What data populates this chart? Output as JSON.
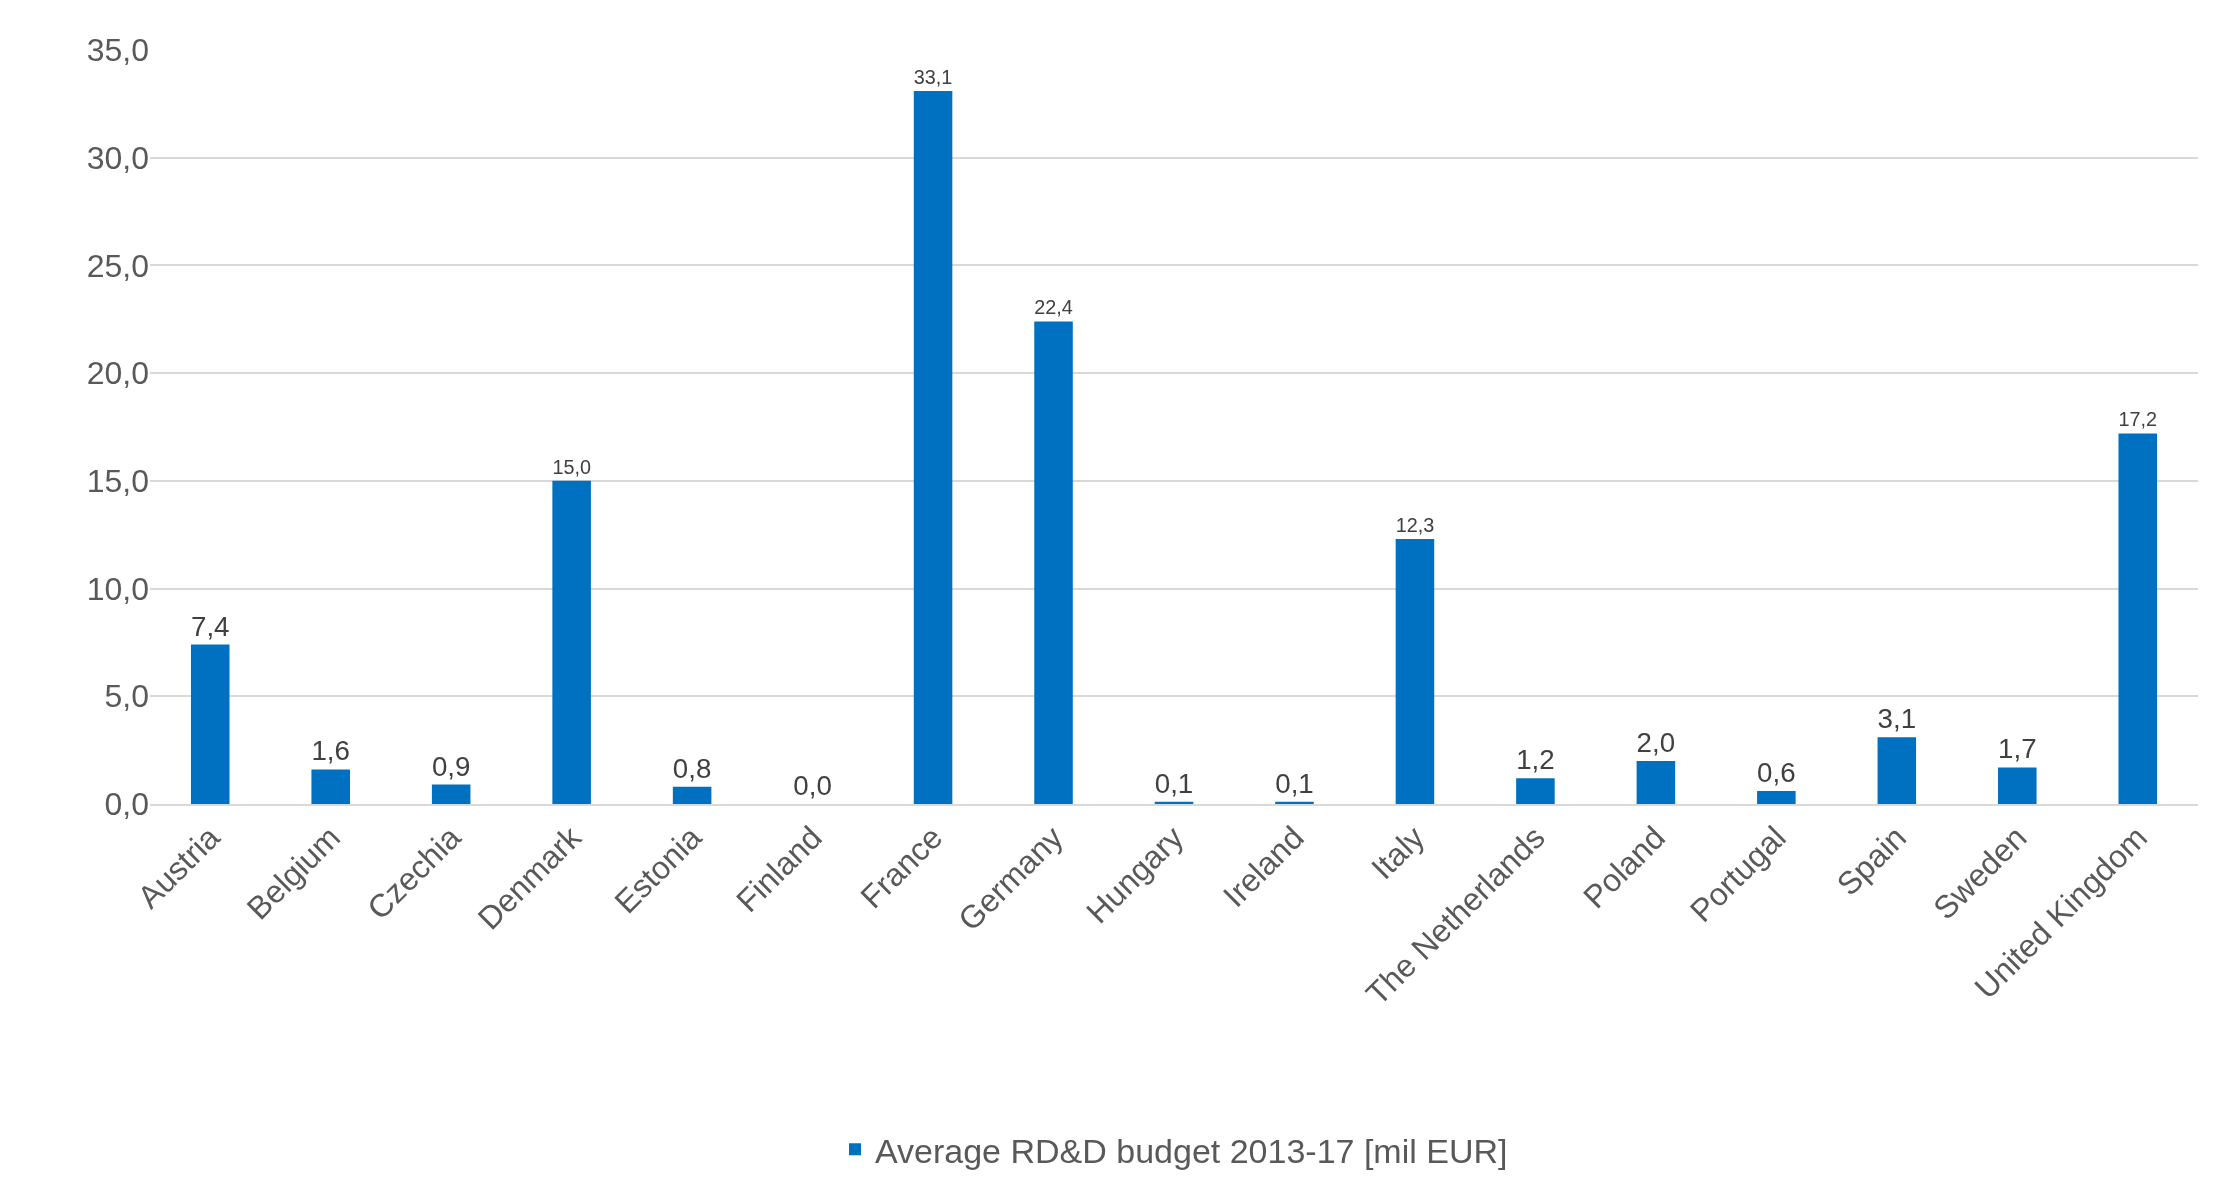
{
  "chart_data": {
    "type": "bar",
    "categories": [
      "Austria",
      "Belgium",
      "Czechia",
      "Denmark",
      "Estonia",
      "Finland",
      "France",
      "Germany",
      "Hungary",
      "Ireland",
      "Italy",
      "The Netherlands",
      "Poland",
      "Portugal",
      "Spain",
      "Sweden",
      "United Kingdom"
    ],
    "series": [
      {
        "name": "Average RD&D budget 2013-17 [mil EUR]",
        "color": "#0070c0",
        "values": [
          7.4,
          1.6,
          0.9,
          15.0,
          0.8,
          0.0,
          33.1,
          22.4,
          0.1,
          0.1,
          12.3,
          1.2,
          2.0,
          0.6,
          3.1,
          1.7,
          17.2
        ],
        "value_labels": [
          "7,4",
          "1,6",
          "0,9",
          "15,0",
          "0,8",
          "0,0",
          "33,1",
          "22,4",
          "0,1",
          "0,1",
          "12,3",
          "1,2",
          "2,0",
          "0,6",
          "3,1",
          "1,7",
          "17,2"
        ]
      }
    ],
    "ylim": [
      0,
      35
    ],
    "yticks": [
      {
        "value": 0,
        "label": "0,0"
      },
      {
        "value": 5,
        "label": "5,0"
      },
      {
        "value": 10,
        "label": "10,0"
      },
      {
        "value": 15,
        "label": "15,0"
      },
      {
        "value": 20,
        "label": "20,0"
      },
      {
        "value": 25,
        "label": "25,0"
      },
      {
        "value": 30,
        "label": "30,0"
      },
      {
        "value": 35,
        "label": "35,0"
      }
    ],
    "grid": "y",
    "legend": "bottom"
  }
}
